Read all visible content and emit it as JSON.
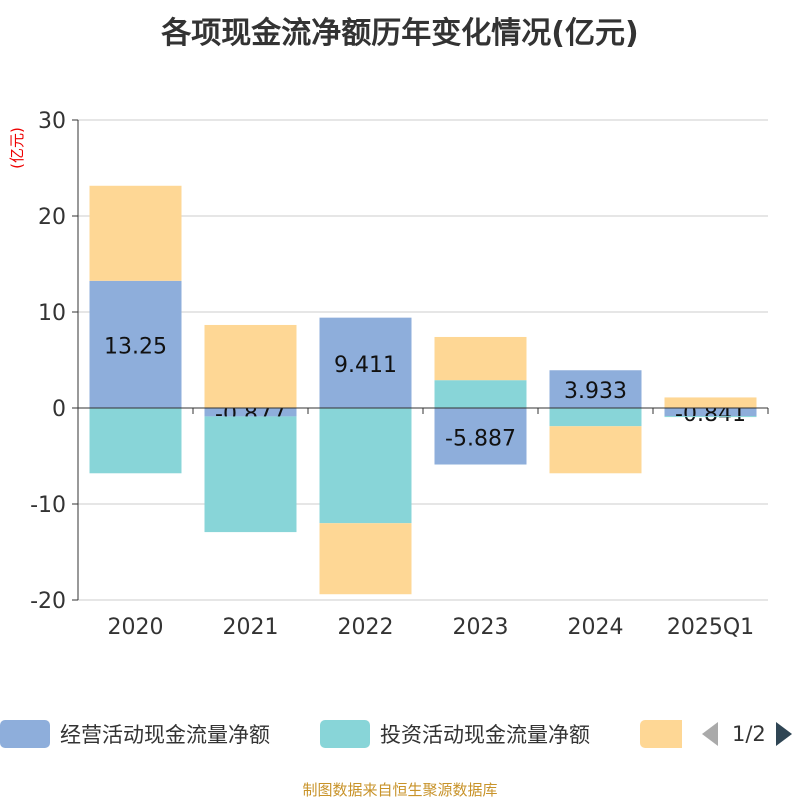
{
  "title": "各项现金流净额历年变化情况(亿元)",
  "footer": "制图数据来自恒生聚源数据库",
  "pager": "1/2",
  "chart_data": {
    "type": "bar",
    "stacked": true,
    "title": "各项现金流净额历年变化情况(亿元)",
    "ylabel": "(亿元)",
    "ylim": [
      -20,
      30
    ],
    "yticks": [
      -20,
      -10,
      0,
      10,
      20,
      30
    ],
    "categories": [
      "2020",
      "2021",
      "2022",
      "2023",
      "2024",
      "2025Q1"
    ],
    "series": [
      {
        "name": "经营活动现金流量净额",
        "color": "#8eaedb",
        "values": [
          13.25,
          -0.877,
          9.411,
          -5.887,
          3.933,
          -0.841
        ],
        "labels": [
          "13.25",
          "-0.877",
          "9.411",
          "-5.887",
          "3.933",
          "-0.841"
        ]
      },
      {
        "name": "投资活动现金流量净额",
        "color": "#88d5d8",
        "values": [
          -6.8,
          -12.05,
          -12.0,
          2.9,
          -1.9,
          -0.05
        ]
      },
      {
        "name": "",
        "color": "#fed795",
        "values": [
          9.9,
          8.65,
          -7.4,
          4.5,
          -4.9,
          1.1
        ]
      }
    ],
    "legend_position": "bottom"
  }
}
